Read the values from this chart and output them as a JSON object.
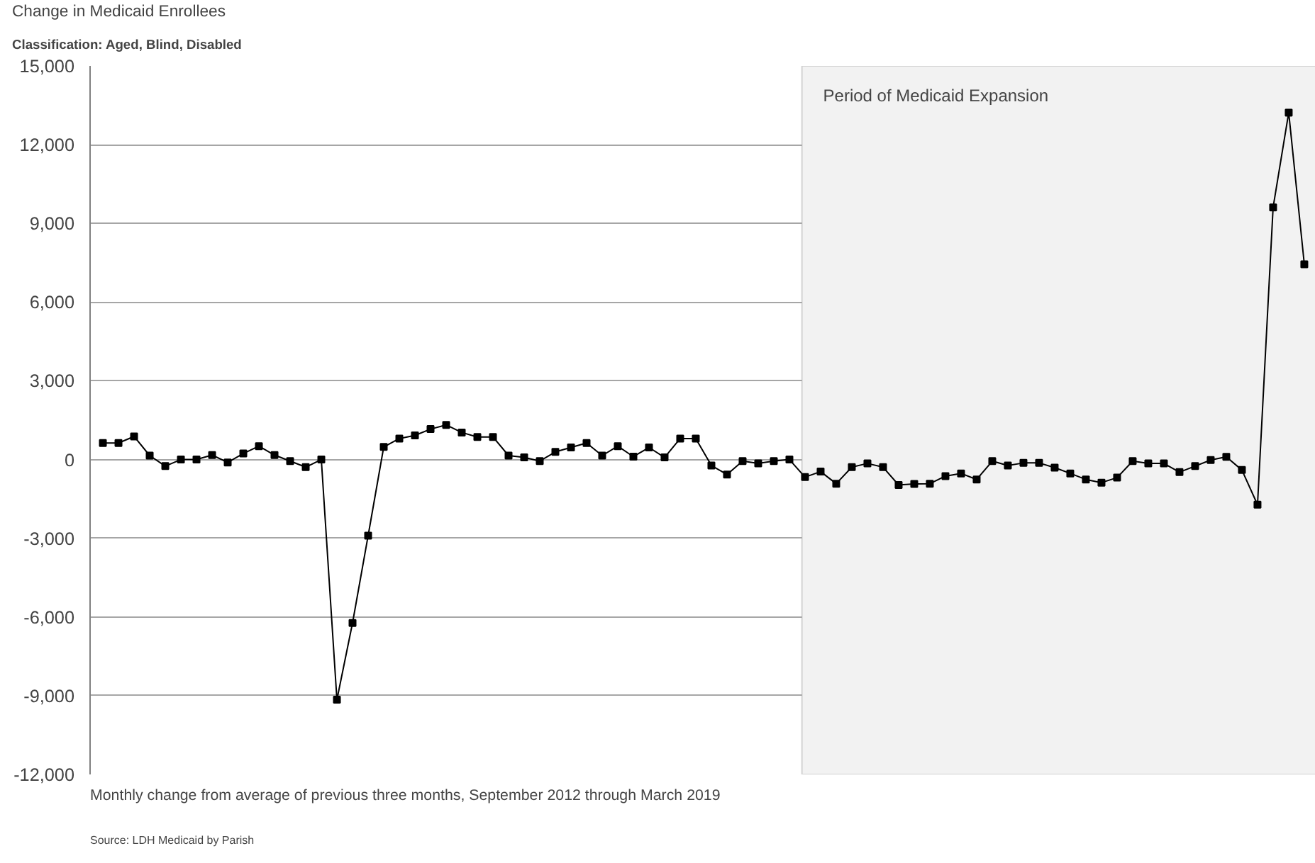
{
  "chart_data": {
    "type": "line",
    "title": "Change in Medicaid Enrollees",
    "subtitle": "Classification: Aged, Blind, Disabled",
    "annotations": [
      "Period of Medicaid Expansion",
      "Monthly change from average of previous three months, September 2012 through March 2019",
      "Source: LDH Medicaid by Parish"
    ],
    "categories": [
      null,
      null,
      null,
      null,
      null,
      null,
      null,
      null,
      null,
      null,
      null,
      null,
      null,
      null,
      null,
      null,
      null,
      null,
      null,
      null,
      null,
      null,
      null,
      null,
      null,
      null,
      null,
      null,
      null,
      null,
      null,
      null,
      null,
      null,
      null,
      null,
      null,
      null,
      null,
      null,
      null,
      null,
      null,
      null,
      null,
      null,
      null,
      null,
      null,
      null,
      null,
      null,
      null,
      null,
      null,
      null,
      null,
      null,
      null,
      null,
      null,
      null,
      null,
      null,
      null,
      null,
      null,
      null,
      null,
      null,
      null,
      null,
      null,
      null,
      null,
      null,
      null,
      null
    ],
    "series": [
      {
        "color": "#000000",
        "values": [
          630,
          630,
          880,
          150,
          -250,
          0,
          0,
          170,
          -110,
          230,
          510,
          170,
          -60,
          -290,
          0,
          -9150,
          -6230,
          -2900,
          480,
          800,
          920,
          1160,
          1320,
          1030,
          860,
          860,
          150,
          80,
          -60,
          290,
          460,
          630,
          150,
          510,
          110,
          460,
          80,
          800,
          800,
          -230,
          -570,
          -60,
          -150,
          -60,
          0,
          -670,
          -460,
          -920,
          -290,
          -150,
          -290,
          -970,
          -930,
          -920,
          -630,
          -530,
          -760,
          -60,
          -230,
          -130,
          -130,
          -310,
          -530,
          -760,
          -880,
          -690,
          -60,
          -150,
          -150,
          -480,
          -250,
          -20,
          100,
          -400,
          -1720,
          9610,
          13220,
          7440
        ]
      }
    ],
    "ylim": [
      -12000,
      15000
    ],
    "yticks": [
      {
        "value": -12000,
        "label": "-12,000"
      },
      {
        "value": -9000,
        "label": "-9,000"
      },
      {
        "value": -6000,
        "label": "-6,000"
      },
      {
        "value": -3000,
        "label": "-3,000"
      },
      {
        "value": 0,
        "label": "0"
      },
      {
        "value": 3000,
        "label": "3,000"
      },
      {
        "value": 6000,
        "label": "6,000"
      },
      {
        "value": 9000,
        "label": "9,000"
      },
      {
        "value": 12000,
        "label": "12,000"
      },
      {
        "value": 15000,
        "label": "15,000"
      }
    ],
    "grid": "y",
    "tick_labels": "y",
    "marker": "square",
    "line_style": "solid"
  }
}
